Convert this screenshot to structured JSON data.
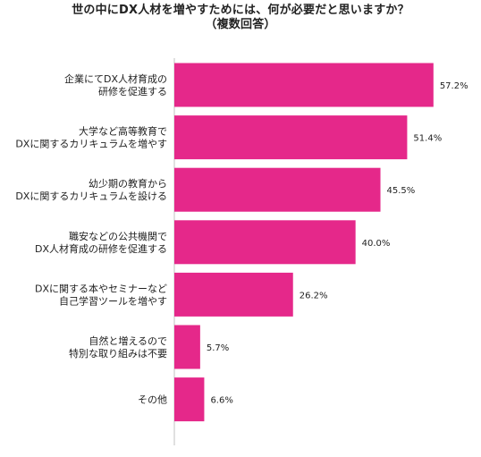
{
  "chart_data": {
    "type": "bar",
    "orientation": "horizontal",
    "title": "世の中にDX人材を増やすためには、何が必要だと思いますか？",
    "subtitle": "（複数回答）",
    "categories": [
      [
        "企業にてDX人材育成の",
        "研修を促進する"
      ],
      [
        "大学など高等教育で",
        "DXに関するカリキュラムを増やす"
      ],
      [
        "幼少期の教育から",
        "DXに関するカリキュラムを設ける"
      ],
      [
        "職安などの公共機関で",
        "DX人材育成の研修を促進する"
      ],
      [
        "DXに関する本やセミナーなど",
        "自己学習ツールを増やす"
      ],
      [
        "自然と増えるので",
        "特別な取り組みは不要"
      ],
      [
        "その他"
      ]
    ],
    "values": [
      57.2,
      51.4,
      45.5,
      40.0,
      26.2,
      5.7,
      6.6
    ],
    "value_labels": [
      "57.2%",
      "51.4%",
      "45.5%",
      "40.0%",
      "26.2%",
      "5.7%",
      "6.6%"
    ],
    "bar_color": "#E5288A",
    "xlim": [
      0,
      60
    ],
    "grid": false,
    "legend": "none"
  }
}
